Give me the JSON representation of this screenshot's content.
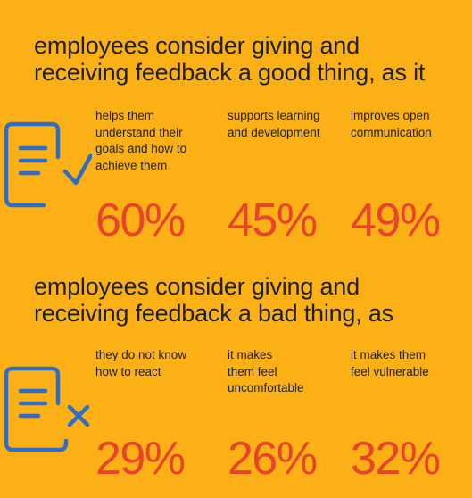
{
  "colors": {
    "background": "#FBB116",
    "icon_blue": "#2F6DC6",
    "percent_red": "#E8442C",
    "text": "#1F1F1F"
  },
  "good": {
    "heading_line1": "employees consider giving and",
    "heading_line2": "receiving feedback a good thing, as it",
    "icon": "document-check-icon",
    "items": [
      {
        "label": "helps them\nunderstand their\ngoals and how to\nachieve them",
        "percent": "60%"
      },
      {
        "label": "supports learning\nand development",
        "percent": "45%"
      },
      {
        "label": "improves open\ncommunication",
        "percent": "49%"
      }
    ]
  },
  "bad": {
    "heading_line1": "employees consider giving and",
    "heading_line2": "receiving feedback a bad thing, as",
    "icon": "document-cross-icon",
    "items": [
      {
        "label": "they do not know\nhow to react",
        "percent": "29%"
      },
      {
        "label": "it makes\nthem feel\nuncomfortable",
        "percent": "26%"
      },
      {
        "label": "it makes them\nfeel vulnerable",
        "percent": "32%"
      }
    ]
  }
}
